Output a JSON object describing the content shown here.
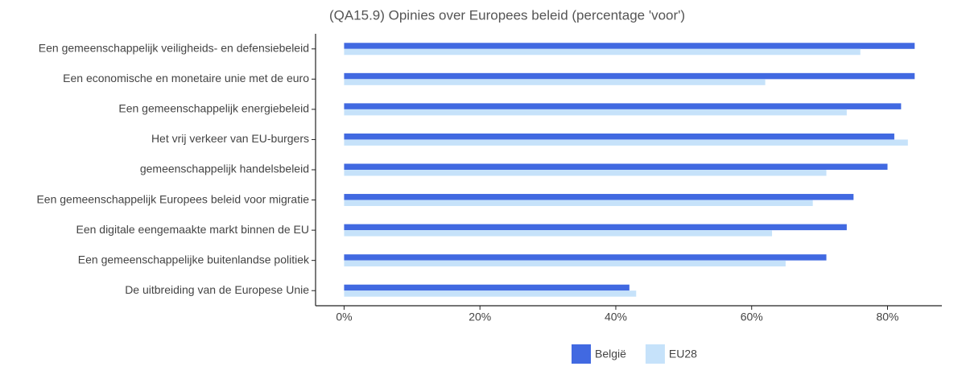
{
  "chart_data": {
    "type": "hbar",
    "title": "(QA15.9) Opinies over Europees beleid (percentage 'voor')",
    "categories": [
      "Een gemeenschappelijk veiligheids- en defensiebeleid",
      "Een economische en monetaire unie met de euro",
      "Een gemeenschappelijk energiebeleid",
      "Het vrij verkeer van EU-burgers",
      "gemeenschappelijk handelsbeleid",
      "Een gemeenschappelijk Europees beleid voor migratie",
      "Een digitale eengemaakte markt binnen de EU",
      "Een gemeenschappelijke buitenlandse politiek",
      "De uitbreiding van de Europese Unie"
    ],
    "series": [
      {
        "name": "België",
        "color": "#4169e1",
        "values": [
          84,
          84,
          82,
          81,
          80,
          75,
          74,
          71,
          42
        ]
      },
      {
        "name": "EU28",
        "color": "#c6e2fa",
        "values": [
          76,
          62,
          74,
          83,
          71,
          69,
          63,
          65,
          43
        ]
      }
    ],
    "xlim": [
      -4.2,
      88
    ],
    "xticks": [
      {
        "value": 0,
        "label": "0%"
      },
      {
        "value": 20,
        "label": "20%"
      },
      {
        "value": 40,
        "label": "40%"
      },
      {
        "value": 60,
        "label": "60%"
      },
      {
        "value": 80,
        "label": "80%"
      }
    ],
    "legend": "bottom"
  }
}
